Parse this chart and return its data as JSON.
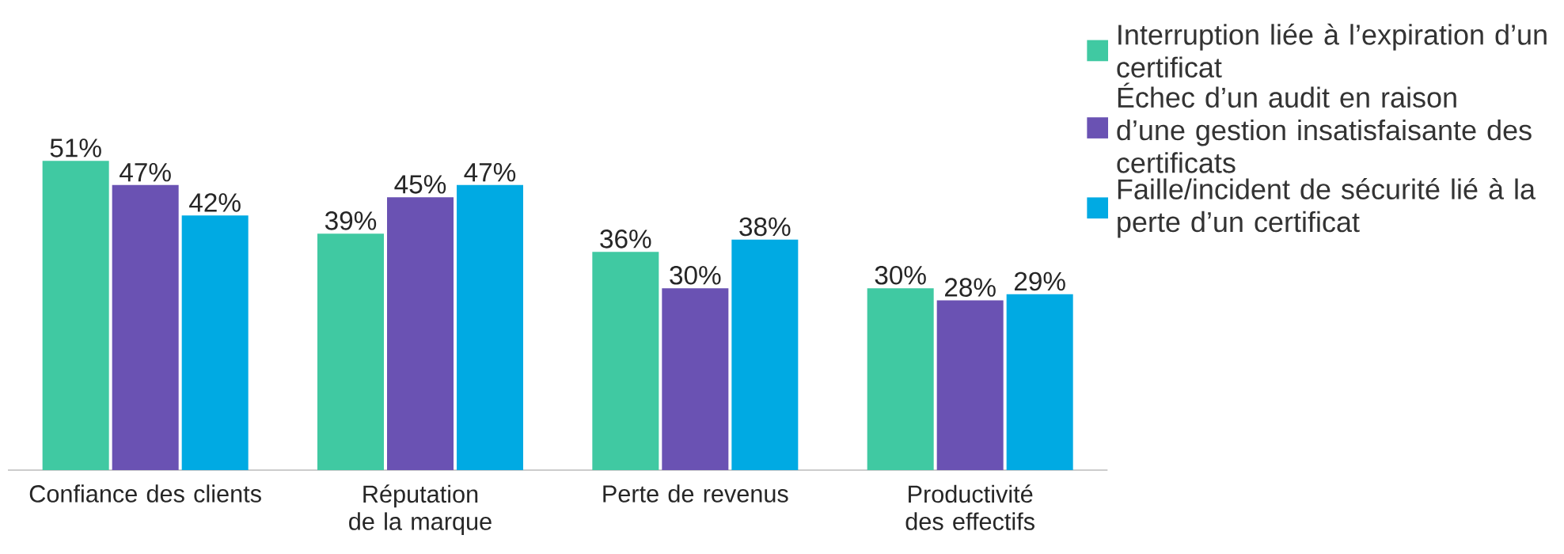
{
  "chart_data": {
    "type": "bar",
    "categories": [
      "Confiance des clients",
      "Réputation de la marque",
      "Perte de revenus",
      "Productivité des effectifs"
    ],
    "series": [
      {
        "name": "Interruption liée à l’expiration d’un certificat",
        "color": "#40c9a2",
        "values": [
          51,
          39,
          36,
          30
        ],
        "value_labels": [
          "51%",
          "39%",
          "36%",
          "30%"
        ]
      },
      {
        "name": "Échec d’un audit en raison d’une gestion insatisfaisante des certificats",
        "color": "#6a52b3",
        "values": [
          47,
          45,
          30,
          28
        ],
        "value_labels": [
          "47%",
          "45%",
          "30%",
          "28%"
        ]
      },
      {
        "name": "Faille/incident de sécurité lié à la perte d’un certificat",
        "color": "#00aae3",
        "values": [
          42,
          47,
          38,
          29
        ],
        "value_labels": [
          "42%",
          "47%",
          "38%",
          "29%"
        ]
      }
    ],
    "legend": "right"
  }
}
